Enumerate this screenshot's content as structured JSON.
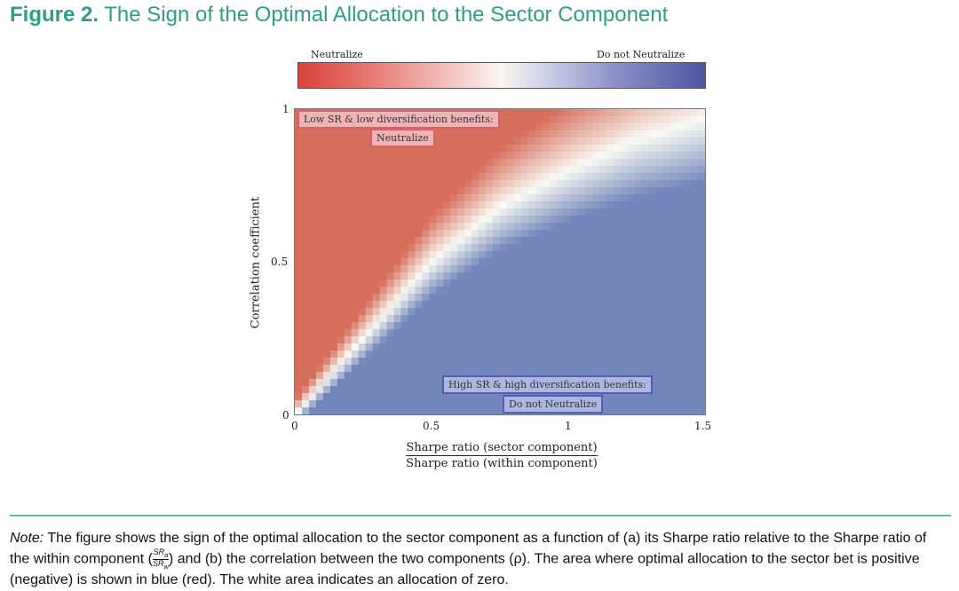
{
  "figure": {
    "number": "Figure 2.",
    "title": "The Sign of the Optimal Allocation to the Sector Component"
  },
  "colorbar": {
    "left_label": "Neutralize",
    "right_label": "Do not Neutralize"
  },
  "chart_data": {
    "type": "heatmap",
    "xlabel_numerator": "Sharpe ratio (sector component)",
    "xlabel_denominator": "Sharpe ratio (within component)",
    "ylabel": "Correlation coefficient",
    "xlim": [
      0,
      1.5
    ],
    "ylim": [
      0,
      1
    ],
    "x_ticks": [
      "0",
      "0.5",
      "1",
      "1.5"
    ],
    "y_ticks": [
      "0",
      "0.5",
      "1"
    ],
    "boundary_description_points": [
      [
        0,
        0
      ],
      [
        0.25,
        0.25
      ],
      [
        0.5,
        0.5
      ],
      [
        0.75,
        0.68
      ],
      [
        1.0,
        0.8
      ],
      [
        1.25,
        0.9
      ],
      [
        1.5,
        0.97
      ]
    ],
    "colors": {
      "negative": "#d9423d",
      "zero": "#ffffff",
      "positive": "#4c55a0"
    },
    "annotations": {
      "red_heading": "Low SR & low diversification benefits:",
      "red_label": "Neutralize",
      "blue_heading": "High SR & high diversification benefits:",
      "blue_label": "Do not Neutralize"
    }
  },
  "note": {
    "label": "Note:",
    "part1": "The figure shows the sign of the optimal allocation to the sector component as a function of (a) its Sharpe ratio relative to the Sharpe ratio of the within component (",
    "frac_top": "SR",
    "frac_top_sub": "a",
    "frac_bottom": "SR",
    "frac_bottom_sub": "w",
    "part2": ") and (b) the correlation between the two components (ρ). The area where optimal allocation to the sector bet is positive (negative) is shown in blue (red). The white area indicates an allocation of zero."
  }
}
